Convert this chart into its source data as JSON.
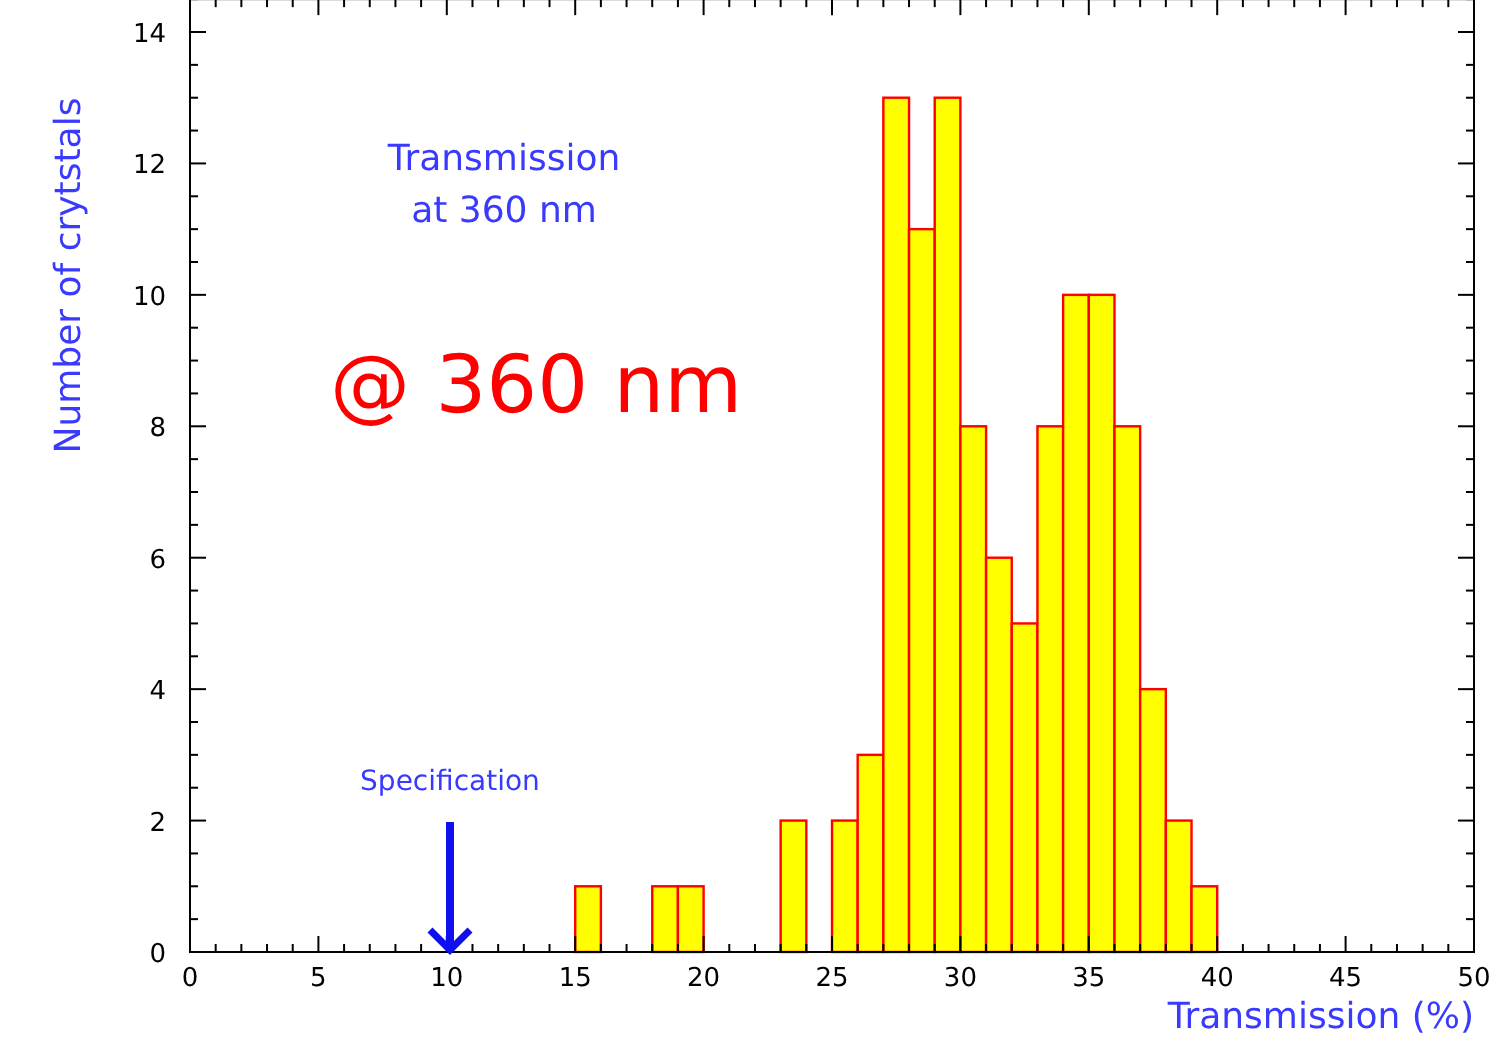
{
  "chart_data": {
    "type": "histogram",
    "xlabel": "Transmission (%)",
    "ylabel": "Number of crytstals",
    "bins": [
      0,
      1,
      2,
      3,
      4,
      5,
      6,
      7,
      8,
      9,
      10,
      11,
      12,
      13,
      14,
      15,
      16,
      17,
      18,
      19,
      20,
      21,
      22,
      23,
      24,
      25,
      26,
      27,
      28,
      29,
      30,
      31,
      32,
      33,
      34,
      35,
      36,
      37,
      38,
      39,
      40,
      41,
      42,
      43,
      44,
      45,
      46,
      47,
      48,
      49,
      50
    ],
    "values": [
      0,
      0,
      0,
      0,
      0,
      0,
      0,
      0,
      0,
      0,
      0,
      0,
      0,
      0,
      0,
      1,
      0,
      0,
      1,
      1,
      0,
      0,
      0,
      2,
      0,
      2,
      3,
      13,
      11,
      13,
      8,
      6,
      5,
      8,
      10,
      10,
      8,
      4,
      2,
      1,
      0,
      0,
      0,
      0,
      0,
      0,
      0,
      0,
      0,
      0
    ],
    "color": "#ffff00",
    "xlim": [
      0,
      50
    ],
    "xticks": [
      0,
      {
        "value": 1,
        "label": null
      },
      {
        "value": 2,
        "label": null
      },
      {
        "value": 3,
        "label": null
      },
      {
        "value": 4,
        "label": null
      },
      5,
      {
        "value": 6,
        "label": null
      },
      {
        "value": 7,
        "label": null
      },
      {
        "value": 8,
        "label": null
      },
      {
        "value": 9,
        "label": null
      },
      10,
      {
        "value": 11,
        "label": null
      },
      {
        "value": 12,
        "label": null
      },
      {
        "value": 13,
        "label": null
      },
      {
        "value": 14,
        "label": null
      },
      15,
      {
        "value": 16,
        "label": null
      },
      {
        "value": 17,
        "label": null
      },
      {
        "value": 18,
        "label": null
      },
      {
        "value": 19,
        "label": null
      },
      20,
      {
        "value": 21,
        "label": null
      },
      {
        "value": 22,
        "label": null
      },
      {
        "value": 23,
        "label": null
      },
      {
        "value": 24,
        "label": null
      },
      25,
      {
        "value": 26,
        "label": null
      },
      {
        "value": 27,
        "label": null
      },
      {
        "value": 28,
        "label": null
      },
      {
        "value": 29,
        "label": null
      },
      30,
      {
        "value": 31,
        "label": null
      },
      {
        "value": 32,
        "label": null
      },
      {
        "value": 33,
        "label": null
      },
      {
        "value": 34,
        "label": null
      },
      35,
      {
        "value": 36,
        "label": null
      },
      {
        "value": 37,
        "label": null
      },
      {
        "value": 38,
        "label": null
      },
      {
        "value": 39,
        "label": null
      },
      40,
      {
        "value": 41,
        "label": null
      },
      {
        "value": 42,
        "label": null
      },
      {
        "value": 43,
        "label": null
      },
      {
        "value": 44,
        "label": null
      },
      45,
      {
        "value": 46,
        "label": null
      },
      {
        "value": 47,
        "label": null
      },
      {
        "value": 48,
        "label": null
      },
      {
        "value": 49,
        "label": null
      },
      50
    ],
    "ylim": [
      0,
      14.5
    ],
    "yticks": [
      0,
      {
        "value": 0.5,
        "label": null
      },
      {
        "value": 1,
        "label": null
      },
      {
        "value": 1.5,
        "label": null
      },
      2,
      {
        "value": 2.5,
        "label": null
      },
      {
        "value": 3,
        "label": null
      },
      {
        "value": 3.5,
        "label": null
      },
      4,
      {
        "value": 4.5,
        "label": null
      },
      {
        "value": 5,
        "label": null
      },
      {
        "value": 5.5,
        "label": null
      },
      6,
      {
        "value": 6.5,
        "label": null
      },
      {
        "value": 7,
        "label": null
      },
      {
        "value": 7.5,
        "label": null
      },
      8,
      {
        "value": 8.5,
        "label": null
      },
      {
        "value": 9,
        "label": null
      },
      {
        "value": 9.5,
        "label": null
      },
      10,
      {
        "value": 10.5,
        "label": null
      },
      {
        "value": 11,
        "label": null
      },
      {
        "value": 11.5,
        "label": null
      },
      12,
      {
        "value": 12.5,
        "label": null
      },
      {
        "value": 13,
        "label": null
      },
      {
        "value": 13.5,
        "label": null
      },
      14,
      {
        "value": 14.5,
        "label": null
      }
    ],
    "annotations": [
      "Transmission\nat 360 nm",
      "@ 360 nm",
      "Specification"
    ]
  }
}
